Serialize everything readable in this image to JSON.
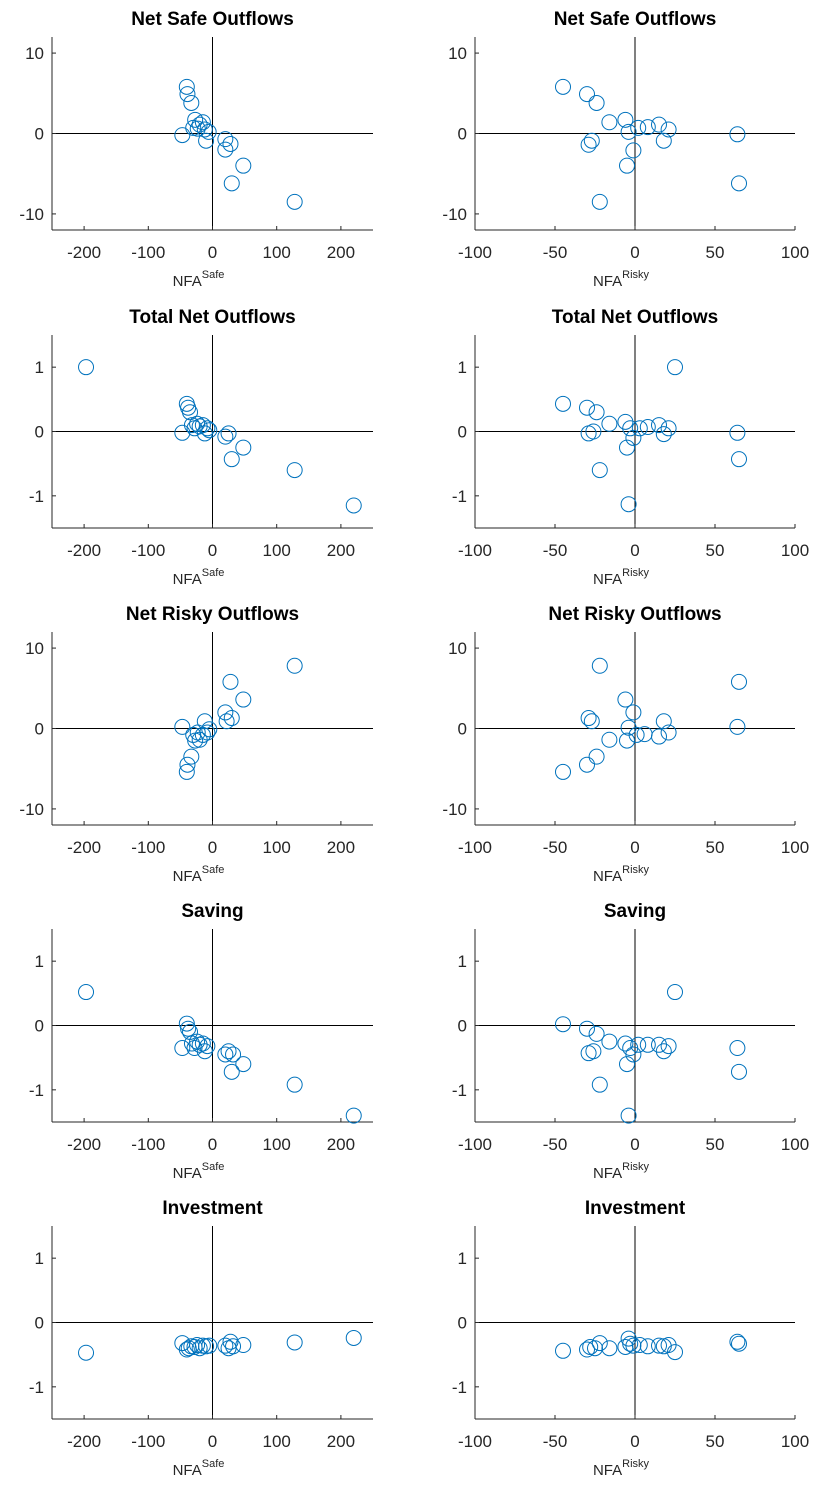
{
  "chart_data": [
    {
      "type": "scatter",
      "title": "Net Safe Outflows",
      "xlabel": "NFA",
      "xlabel_sup": "Safe",
      "color": "#0072bd",
      "x": [
        -47,
        -40,
        -39,
        -33,
        -30,
        -27,
        -23,
        -20,
        -15,
        -12,
        -10,
        -6,
        20,
        20,
        28,
        30,
        48,
        128
      ],
      "values": [
        -0.2,
        5.8,
        4.9,
        3.8,
        0.7,
        1.7,
        0.6,
        1.1,
        1.4,
        0.5,
        -0.9,
        0.2,
        -0.7,
        -2.0,
        -1.3,
        -6.2,
        -4.0,
        -8.5
      ],
      "xlim": [
        -250,
        250
      ],
      "xticks": [
        -200,
        -100,
        0,
        100,
        200
      ],
      "ylim": [
        -12,
        12
      ],
      "yticks": [
        -10,
        0,
        10
      ]
    },
    {
      "type": "scatter",
      "title": "Net Safe Outflows",
      "xlabel": "NFA",
      "xlabel_sup": "Risky",
      "color": "#0072bd",
      "x": [
        -45,
        -30,
        -29,
        -27,
        -24,
        -22,
        -16,
        -6,
        -5,
        -4,
        -1,
        2,
        8,
        15,
        18,
        21,
        64,
        65
      ],
      "values": [
        5.8,
        4.9,
        -1.4,
        -0.9,
        3.8,
        -8.5,
        1.4,
        1.7,
        -4.0,
        0.2,
        -2.1,
        0.7,
        0.8,
        1.1,
        -0.9,
        0.5,
        -0.1,
        -6.2
      ],
      "xlim": [
        -100,
        100
      ],
      "xticks": [
        -100,
        -50,
        0,
        50,
        100
      ],
      "ylim": [
        -12,
        12
      ],
      "yticks": [
        -10,
        0,
        10
      ]
    },
    {
      "type": "scatter",
      "title": "Total Net Outflows",
      "xlabel": "NFA",
      "xlabel_sup": "Safe",
      "color": "#0072bd",
      "x": [
        -197,
        -47,
        -40,
        -38,
        -35,
        -32,
        -28,
        -24,
        -20,
        -15,
        -12,
        -8,
        -5,
        20,
        25,
        30,
        48,
        128,
        220
      ],
      "values": [
        1.0,
        -0.02,
        0.43,
        0.37,
        0.3,
        0.1,
        0.05,
        0.12,
        0.08,
        0.1,
        -0.03,
        0.05,
        0.02,
        -0.08,
        -0.03,
        -0.43,
        -0.25,
        -0.6,
        -1.15
      ],
      "xlim": [
        -250,
        250
      ],
      "xticks": [
        -200,
        -100,
        0,
        100,
        200
      ],
      "ylim": [
        -1.5,
        1.5
      ],
      "yticks": [
        -1,
        0,
        1
      ]
    },
    {
      "type": "scatter",
      "title": "Total Net Outflows",
      "xlabel": "NFA",
      "xlabel_sup": "Risky",
      "color": "#0072bd",
      "x": [
        -45,
        -30,
        -29,
        -26,
        -24,
        -22,
        -16,
        -6,
        -5,
        -4,
        -3,
        -1,
        3,
        8,
        15,
        18,
        21,
        25,
        64,
        65
      ],
      "values": [
        0.43,
        0.37,
        -0.03,
        0.0,
        0.3,
        -0.6,
        0.12,
        0.15,
        -0.25,
        -1.13,
        0.05,
        -0.1,
        0.05,
        0.07,
        0.1,
        -0.04,
        0.05,
        1.0,
        -0.02,
        -0.43
      ],
      "xlim": [
        -100,
        100
      ],
      "xticks": [
        -100,
        -50,
        0,
        50,
        100
      ],
      "ylim": [
        -1.5,
        1.5
      ],
      "yticks": [
        -1,
        0,
        1
      ]
    },
    {
      "type": "scatter",
      "title": "Net Risky Outflows",
      "xlabel": "NFA",
      "xlabel_sup": "Safe",
      "color": "#0072bd",
      "x": [
        -47,
        -40,
        -39,
        -33,
        -30,
        -27,
        -23,
        -20,
        -15,
        -12,
        -8,
        -5,
        20,
        22,
        28,
        30,
        48,
        128
      ],
      "values": [
        0.2,
        -5.4,
        -4.5,
        -3.5,
        -0.8,
        -1.5,
        -0.5,
        -1.4,
        -0.8,
        0.9,
        -0.5,
        -0.1,
        2.0,
        0.9,
        5.8,
        1.3,
        3.6,
        7.8
      ],
      "xlim": [
        -250,
        250
      ],
      "xticks": [
        -200,
        -100,
        0,
        100,
        200
      ],
      "ylim": [
        -12,
        12
      ],
      "yticks": [
        -10,
        0,
        10
      ]
    },
    {
      "type": "scatter",
      "title": "Net Risky Outflows",
      "xlabel": "NFA",
      "xlabel_sup": "Risky",
      "color": "#0072bd",
      "x": [
        -45,
        -30,
        -29,
        -27,
        -24,
        -22,
        -16,
        -6,
        -5,
        -4,
        -1,
        1,
        6,
        15,
        18,
        21,
        64,
        65
      ],
      "values": [
        -5.4,
        -4.5,
        1.3,
        0.9,
        -3.5,
        7.8,
        -1.4,
        3.6,
        -1.5,
        0.1,
        2.0,
        -0.8,
        -0.7,
        -1.0,
        0.9,
        -0.5,
        0.2,
        5.8
      ],
      "xlim": [
        -100,
        100
      ],
      "xticks": [
        -100,
        -50,
        0,
        50,
        100
      ],
      "ylim": [
        -12,
        12
      ],
      "yticks": [
        -10,
        0,
        10
      ]
    },
    {
      "type": "scatter",
      "title": "Saving",
      "xlabel": "NFA",
      "xlabel_sup": "Safe",
      "color": "#0072bd",
      "x": [
        -197,
        -47,
        -40,
        -38,
        -35,
        -32,
        -28,
        -24,
        -20,
        -15,
        -12,
        -8,
        20,
        25,
        30,
        32,
        48,
        128,
        220
      ],
      "values": [
        0.52,
        -0.35,
        0.03,
        -0.05,
        -0.1,
        -0.28,
        -0.35,
        -0.25,
        -0.3,
        -0.28,
        -0.4,
        -0.32,
        -0.45,
        -0.4,
        -0.72,
        -0.45,
        -0.6,
        -0.92,
        -1.4
      ],
      "xlim": [
        -250,
        250
      ],
      "xticks": [
        -200,
        -100,
        0,
        100,
        200
      ],
      "ylim": [
        -1.5,
        1.5
      ],
      "yticks": [
        -1,
        0,
        1
      ]
    },
    {
      "type": "scatter",
      "title": "Saving",
      "xlabel": "NFA",
      "xlabel_sup": "Risky",
      "color": "#0072bd",
      "x": [
        -45,
        -30,
        -29,
        -26,
        -24,
        -22,
        -16,
        -6,
        -5,
        -4,
        -3,
        -1,
        2,
        8,
        15,
        18,
        21,
        25,
        64,
        65
      ],
      "values": [
        0.02,
        -0.05,
        -0.43,
        -0.4,
        -0.13,
        -0.92,
        -0.25,
        -0.28,
        -0.6,
        -1.4,
        -0.35,
        -0.45,
        -0.3,
        -0.3,
        -0.3,
        -0.4,
        -0.32,
        0.52,
        -0.35,
        -0.72
      ],
      "xlim": [
        -100,
        100
      ],
      "xticks": [
        -100,
        -50,
        0,
        50,
        100
      ],
      "ylim": [
        -1.5,
        1.5
      ],
      "yticks": [
        -1,
        0,
        1
      ]
    },
    {
      "type": "scatter",
      "title": "Investment",
      "xlabel": "NFA",
      "xlabel_sup": "Safe",
      "color": "#0072bd",
      "x": [
        -197,
        -47,
        -40,
        -37,
        -33,
        -28,
        -24,
        -20,
        -15,
        -10,
        -5,
        20,
        25,
        28,
        32,
        48,
        128,
        220
      ],
      "values": [
        -0.47,
        -0.32,
        -0.42,
        -0.4,
        -0.37,
        -0.38,
        -0.35,
        -0.4,
        -0.36,
        -0.37,
        -0.36,
        -0.36,
        -0.4,
        -0.3,
        -0.37,
        -0.35,
        -0.31,
        -0.24
      ],
      "xlim": [
        -250,
        250
      ],
      "xticks": [
        -200,
        -100,
        0,
        100,
        200
      ],
      "ylim": [
        -1.5,
        1.5
      ],
      "yticks": [
        -1,
        0,
        1
      ]
    },
    {
      "type": "scatter",
      "title": "Investment",
      "xlabel": "NFA",
      "xlabel_sup": "Risky",
      "color": "#0072bd",
      "x": [
        -45,
        -30,
        -28,
        -25,
        -22,
        -16,
        -6,
        -4,
        -3,
        -1,
        3,
        8,
        15,
        18,
        21,
        25,
        64,
        65
      ],
      "values": [
        -0.44,
        -0.42,
        -0.38,
        -0.4,
        -0.32,
        -0.4,
        -0.38,
        -0.25,
        -0.33,
        -0.36,
        -0.35,
        -0.37,
        -0.36,
        -0.37,
        -0.35,
        -0.46,
        -0.3,
        -0.33
      ],
      "xlim": [
        -100,
        100
      ],
      "xticks": [
        -100,
        -50,
        0,
        50,
        100
      ],
      "ylim": [
        -1.5,
        1.5
      ],
      "yticks": [
        -1,
        0,
        1
      ]
    }
  ]
}
